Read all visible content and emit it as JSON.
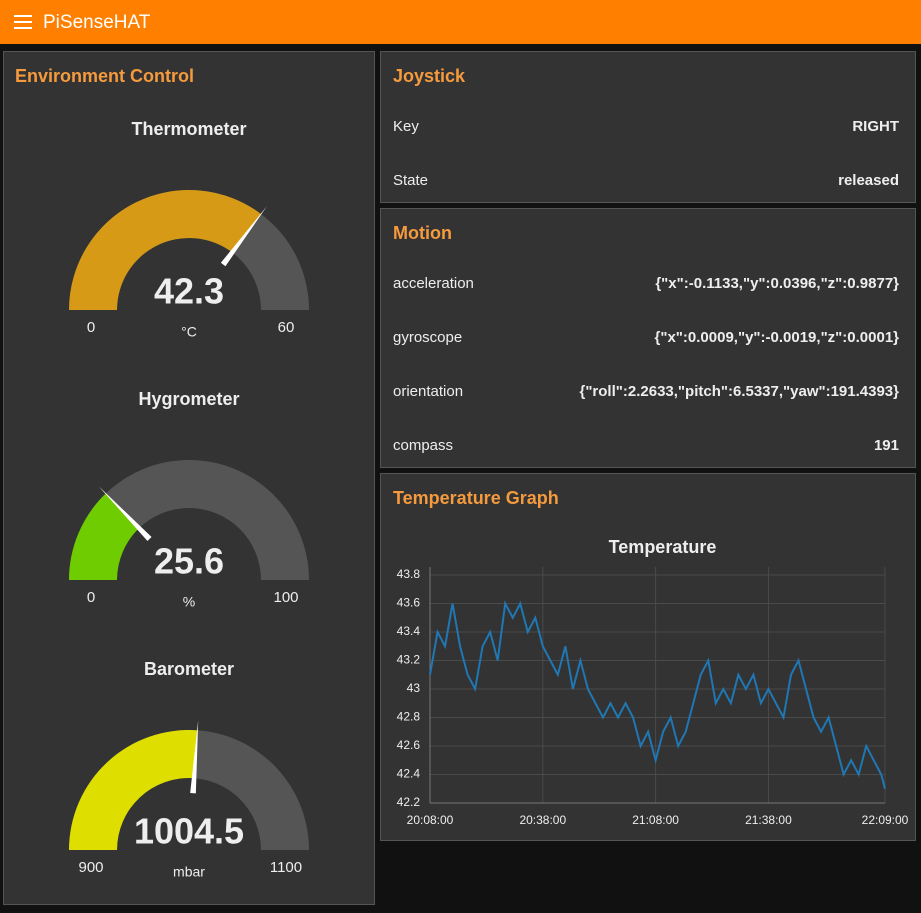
{
  "header": {
    "title": "PiSenseHAT"
  },
  "environment": {
    "title": "Environment Control",
    "gauges": [
      {
        "title": "Thermometer",
        "value": 42.3,
        "min": 0,
        "max": 60,
        "unit": "°C",
        "color": "#d69a16"
      },
      {
        "title": "Hygrometer",
        "value": 25.6,
        "min": 0,
        "max": 100,
        "unit": "%",
        "color": "#6ecc00"
      },
      {
        "title": "Barometer",
        "value": 1004.5,
        "min": 900,
        "max": 1100,
        "unit": "mbar",
        "color": "#dede00"
      }
    ]
  },
  "joystick": {
    "title": "Joystick",
    "rows": [
      [
        "Key",
        "RIGHT"
      ],
      [
        "State",
        "released"
      ]
    ]
  },
  "motion": {
    "title": "Motion",
    "rows": [
      [
        "acceleration",
        "{\"x\":-0.1133,\"y\":0.0396,\"z\":0.9877}"
      ],
      [
        "gyroscope",
        "{\"x\":0.0009,\"y\":-0.0019,\"z\":0.0001}"
      ],
      [
        "orientation",
        "{\"roll\":2.2633,\"pitch\":6.5337,\"yaw\":191.4393}"
      ],
      [
        "compass",
        "191"
      ]
    ]
  },
  "graph": {
    "title": "Temperature Graph",
    "chart_data": {
      "type": "line",
      "title": "Temperature",
      "x": [
        "20:08:00",
        "20:10:00",
        "20:12:00",
        "20:14:00",
        "20:16:00",
        "20:18:00",
        "20:20:00",
        "20:22:00",
        "20:24:00",
        "20:26:00",
        "20:28:00",
        "20:30:00",
        "20:32:00",
        "20:34:00",
        "20:36:00",
        "20:38:00",
        "20:40:00",
        "20:42:00",
        "20:44:00",
        "20:46:00",
        "20:48:00",
        "20:50:00",
        "20:52:00",
        "20:54:00",
        "20:56:00",
        "20:58:00",
        "21:00:00",
        "21:02:00",
        "21:04:00",
        "21:06:00",
        "21:08:00",
        "21:10:00",
        "21:12:00",
        "21:14:00",
        "21:16:00",
        "21:18:00",
        "21:20:00",
        "21:22:00",
        "21:24:00",
        "21:26:00",
        "21:28:00",
        "21:30:00",
        "21:32:00",
        "21:34:00",
        "21:36:00",
        "21:38:00",
        "21:40:00",
        "21:42:00",
        "21:44:00",
        "21:46:00",
        "21:48:00",
        "21:50:00",
        "21:52:00",
        "21:54:00",
        "21:56:00",
        "21:58:00",
        "22:00:00",
        "22:02:00",
        "22:04:00",
        "22:06:00",
        "22:08:00",
        "22:09:00"
      ],
      "series": [
        {
          "name": "Temperature",
          "color": "#1f77b4",
          "values": [
            43.1,
            43.4,
            43.3,
            43.6,
            43.3,
            43.1,
            43.0,
            43.3,
            43.4,
            43.2,
            43.6,
            43.5,
            43.6,
            43.4,
            43.5,
            43.3,
            43.2,
            43.1,
            43.3,
            43.0,
            43.2,
            43.0,
            42.9,
            42.8,
            42.9,
            42.8,
            42.9,
            42.8,
            42.6,
            42.7,
            42.5,
            42.7,
            42.8,
            42.6,
            42.7,
            42.9,
            43.1,
            43.2,
            42.9,
            43.0,
            42.9,
            43.1,
            43.0,
            43.1,
            42.9,
            43.0,
            42.9,
            42.8,
            43.1,
            43.2,
            43.0,
            42.8,
            42.7,
            42.8,
            42.6,
            42.4,
            42.5,
            42.4,
            42.6,
            42.5,
            42.4,
            42.3
          ]
        }
      ],
      "xlim": [
        "20:08:00",
        "22:09:00"
      ],
      "xticks": [
        "20:08:00",
        "20:38:00",
        "21:08:00",
        "21:38:00",
        "22:09:00"
      ],
      "ylim": [
        42.2,
        43.8
      ],
      "yticks": [
        42.2,
        42.4,
        42.6,
        42.8,
        43,
        43.2,
        43.4,
        43.6,
        43.8
      ],
      "grid": true
    }
  }
}
